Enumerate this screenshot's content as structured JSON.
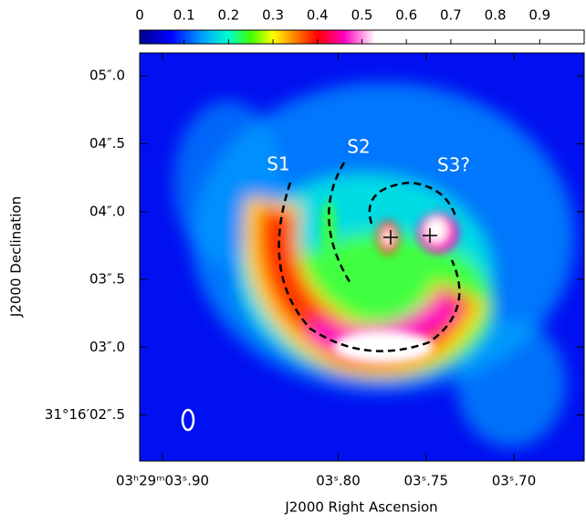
{
  "chart_data": {
    "type": "image",
    "xlabel": "J2000 Right Ascension",
    "ylabel": "J2000 Declination",
    "xlim": [
      3.913,
      3.66
    ],
    "xticks": [
      {
        "value": 3.9,
        "label": "03ʰ29ᵐ03ˢ.90"
      },
      {
        "value": 3.8,
        "label": "03ˢ.80"
      },
      {
        "value": 3.75,
        "label": "03ˢ.75"
      },
      {
        "value": 3.7,
        "label": "03ˢ.70"
      }
    ],
    "ylim": [
      2.16,
      5.17
    ],
    "yticks": [
      {
        "value": 5.0,
        "label": "05″.0"
      },
      {
        "value": 4.5,
        "label": "04″.5"
      },
      {
        "value": 4.0,
        "label": "04″.0"
      },
      {
        "value": 3.5,
        "label": "03″.5"
      },
      {
        "value": 3.0,
        "label": "03″.0"
      },
      {
        "value": 2.5,
        "label": "31°16′02″.5"
      }
    ],
    "colorbar": {
      "lim": [
        0,
        1
      ],
      "ticks": [
        0,
        0.1,
        0.2,
        0.3,
        0.4,
        0.5,
        0.6,
        0.7,
        0.8,
        0.9
      ]
    },
    "annotations": [
      "S1",
      "S2",
      "S3?"
    ]
  }
}
